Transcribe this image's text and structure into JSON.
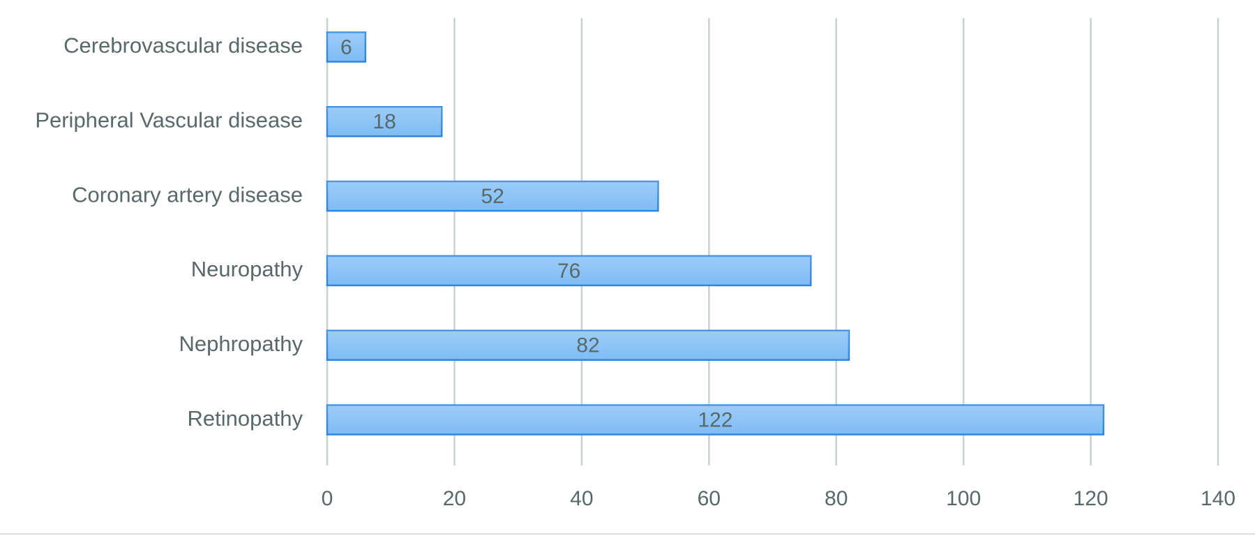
{
  "chart_data": {
    "type": "bar",
    "orientation": "horizontal",
    "categories": [
      "Cerebrovascular disease",
      "Peripheral Vascular disease",
      "Coronary artery disease",
      "Neuropathy",
      "Nephropathy",
      "Retinopathy"
    ],
    "values": [
      6,
      18,
      52,
      76,
      82,
      122
    ],
    "color": "#7dbcf5",
    "edge_color": "#2f86e0",
    "xlim": [
      0,
      140
    ],
    "xticks": [
      0,
      20,
      40,
      60,
      80,
      100,
      120,
      140
    ],
    "grid": true,
    "data_labels": true
  }
}
